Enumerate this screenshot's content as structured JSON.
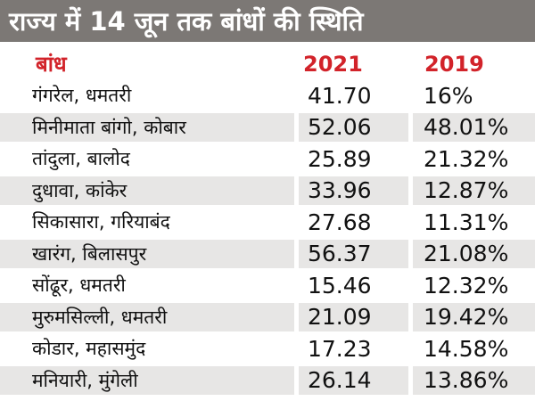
{
  "title": "राज्य में 14 जून तक बांधों की स्थिति",
  "headers": {
    "name": "बांध",
    "col_a": "2021",
    "col_b": "2019"
  },
  "colors": {
    "title_bg": "#7c7875",
    "header_text": "#d2232a",
    "stripe": "#e7e6e5"
  },
  "rows": [
    {
      "name": "गंगरेल, धमतरी",
      "a": "41.70",
      "b": "16%"
    },
    {
      "name": "मिनीमाता बांगो, कोबार",
      "a": "52.06",
      "b": "48.01%"
    },
    {
      "name": "तांदुला, बालोद",
      "a": "25.89",
      "b": "21.32%"
    },
    {
      "name": "दुधावा, कांकेर",
      "a": "33.96",
      "b": "12.87%"
    },
    {
      "name": "सिकासारा, गरियाबंद",
      "a": "27.68",
      "b": "11.31%"
    },
    {
      "name": "खारंग, बिलासपुर",
      "a": "56.37",
      "b": "21.08%"
    },
    {
      "name": "सोंढूर, धमतरी",
      "a": "15.46",
      "b": "12.32%"
    },
    {
      "name": "मुरुमसिल्ली, धमतरी",
      "a": "21.09",
      "b": "19.42%"
    },
    {
      "name": "कोडार, महासमुंद",
      "a": "17.23",
      "b": "14.58%"
    },
    {
      "name": "मनियारी, मुंगेली",
      "a": "26.14",
      "b": "13.86%"
    }
  ]
}
